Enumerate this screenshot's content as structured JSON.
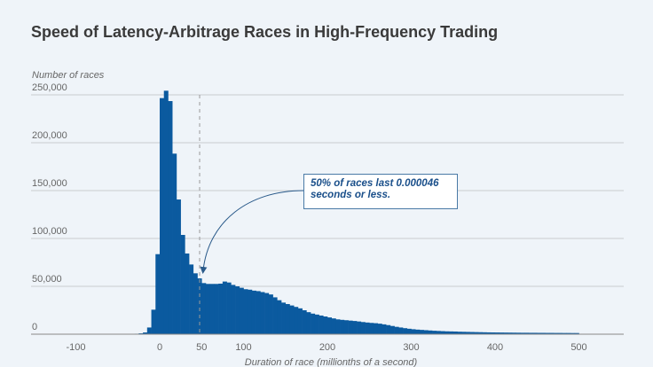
{
  "chart_data": {
    "type": "bar",
    "title": "Speed of Latency-Arbitrage Races in High-Frequency Trading",
    "ylabel": "Number of races",
    "xlabel": "Duration of race (millionths of a second)",
    "xlim": [
      -100,
      500
    ],
    "ylim": [
      0,
      250000
    ],
    "xticks": [
      -100,
      0,
      50,
      100,
      200,
      300,
      400,
      500
    ],
    "yticks": [
      0,
      50000,
      100000,
      150000,
      200000,
      250000
    ],
    "ytick_labels": [
      "0",
      "50,000",
      "100,000",
      "150,000",
      "200,000",
      "250,000"
    ],
    "grid": true,
    "bin_width": 5,
    "bin_start": [
      -50,
      -45,
      -40,
      -35,
      -30,
      -25,
      -20,
      -15,
      -10,
      -5,
      0,
      5,
      10,
      15,
      20,
      25,
      30,
      35,
      40,
      45,
      50,
      55,
      60,
      65,
      70,
      75,
      80,
      85,
      90,
      95,
      100,
      105,
      110,
      115,
      120,
      125,
      130,
      135,
      140,
      145,
      150,
      155,
      160,
      165,
      170,
      175,
      180,
      185,
      190,
      195,
      200,
      205,
      210,
      215,
      220,
      225,
      230,
      235,
      240,
      245,
      250,
      255,
      260,
      265,
      270,
      275,
      280,
      285,
      290,
      295,
      300,
      305,
      310,
      315,
      320,
      325,
      330,
      335,
      340,
      345,
      350,
      355,
      360,
      365,
      370,
      375,
      380,
      385,
      390,
      395,
      400,
      405,
      410,
      415,
      420,
      425,
      430,
      435,
      440,
      445,
      450,
      455,
      460,
      465,
      470,
      475,
      480,
      485,
      490,
      495
    ],
    "counts": [
      100,
      150,
      200,
      300,
      500,
      900,
      1800,
      7000,
      25600,
      83600,
      246600,
      254300,
      243500,
      188600,
      140700,
      103700,
      84300,
      72800,
      63600,
      58300,
      53400,
      52500,
      52500,
      52500,
      52800,
      55000,
      54000,
      51500,
      50000,
      48500,
      47000,
      46500,
      45500,
      45000,
      44000,
      43000,
      41500,
      38500,
      35500,
      33000,
      31500,
      30000,
      28500,
      27000,
      25000,
      23000,
      21500,
      20500,
      19500,
      18500,
      17500,
      16500,
      15500,
      15000,
      14600,
      14200,
      13800,
      13300,
      12700,
      12200,
      11800,
      11500,
      11000,
      10300,
      9500,
      8600,
      7700,
      7000,
      6300,
      5700,
      5200,
      4800,
      4500,
      4200,
      3900,
      3600,
      3400,
      3200,
      3000,
      2900,
      2800,
      2600,
      2500,
      2400,
      2300,
      2200,
      2100,
      2000,
      1900,
      1850,
      1800,
      1750,
      1700,
      1650,
      1600,
      1550,
      1500,
      1500,
      1450,
      1450,
      1400,
      1400,
      1350,
      1350,
      1300,
      1300,
      1250,
      1250,
      1200,
      1200
    ],
    "median_marker": 50,
    "annotation": "50% of races last 0.000046 seconds or less.",
    "bar_color": "#0b5a9f",
    "background": "#eff4f9"
  }
}
